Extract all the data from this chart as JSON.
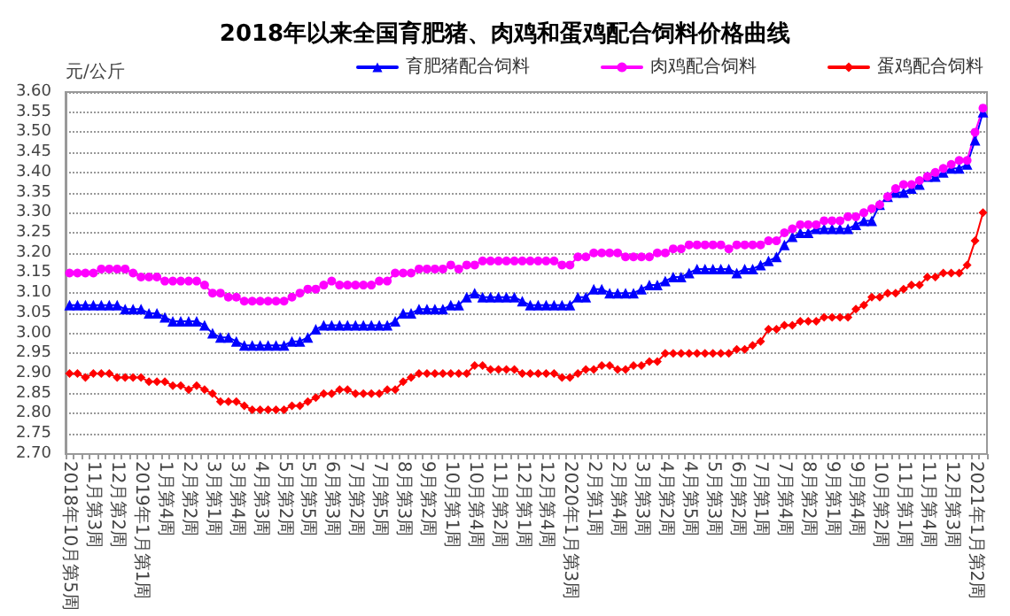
{
  "chart_data": {
    "type": "line",
    "title": "2018年以来全国育肥猪、肉鸡和蛋鸡配合饲料价格曲线",
    "ylabel": "元/公斤",
    "categories": [
      "2018年10月第5周",
      null,
      null,
      "11月第3周",
      null,
      null,
      "12月第2周",
      null,
      null,
      "2019年1月第1周",
      null,
      null,
      "1月第4周",
      null,
      null,
      "2月第2周",
      null,
      null,
      "3月第1周",
      null,
      null,
      "3月第4周",
      null,
      null,
      "4月第3周",
      null,
      null,
      "5月第2周",
      null,
      null,
      "5月第5周",
      null,
      null,
      "6月第3周",
      null,
      null,
      "7月第2周",
      null,
      null,
      "7月第5周",
      null,
      null,
      "8月第3周",
      null,
      null,
      "9月第2周",
      null,
      null,
      "10月第1周",
      null,
      null,
      "10月第4周",
      null,
      null,
      "11月第2周",
      null,
      null,
      "12月第1周",
      null,
      null,
      "12月第4周",
      null,
      null,
      "2020年1月第3周",
      null,
      null,
      "2月第1周",
      null,
      null,
      "2月第4周",
      null,
      null,
      "3月第3周",
      null,
      null,
      "4月第2周",
      null,
      null,
      "4月第5周",
      null,
      null,
      "5月第3周",
      null,
      null,
      "6月第2周",
      null,
      null,
      "7月第1周",
      null,
      null,
      "7月第4周",
      null,
      null,
      "8月第2周",
      null,
      null,
      "9月第1周",
      null,
      null,
      "9月第4周",
      null,
      null,
      "10月第2周",
      null,
      null,
      "11月第1周",
      null,
      null,
      "11月第4周",
      null,
      null,
      "12月第3周",
      null,
      null,
      "2021年1月第2周",
      null
    ],
    "series": [
      {
        "name": "育肥猪配合饲料",
        "color": "#0000ff",
        "marker": "triangle",
        "values": [
          3.07,
          3.07,
          3.07,
          3.07,
          3.07,
          3.07,
          3.07,
          3.06,
          3.06,
          3.06,
          3.05,
          3.05,
          3.04,
          3.03,
          3.03,
          3.03,
          3.03,
          3.02,
          3.0,
          2.99,
          2.99,
          2.98,
          2.97,
          2.97,
          2.97,
          2.97,
          2.97,
          2.97,
          2.98,
          2.98,
          2.99,
          3.01,
          3.02,
          3.02,
          3.02,
          3.02,
          3.02,
          3.02,
          3.02,
          3.02,
          3.02,
          3.03,
          3.05,
          3.05,
          3.06,
          3.06,
          3.06,
          3.06,
          3.07,
          3.07,
          3.09,
          3.1,
          3.09,
          3.09,
          3.09,
          3.09,
          3.09,
          3.08,
          3.07,
          3.07,
          3.07,
          3.07,
          3.07,
          3.07,
          3.09,
          3.09,
          3.11,
          3.11,
          3.1,
          3.1,
          3.1,
          3.1,
          3.11,
          3.12,
          3.12,
          3.13,
          3.14,
          3.14,
          3.15,
          3.16,
          3.16,
          3.16,
          3.16,
          3.16,
          3.15,
          3.16,
          3.16,
          3.17,
          3.18,
          3.19,
          3.22,
          3.24,
          3.25,
          3.25,
          3.26,
          3.26,
          3.26,
          3.26,
          3.26,
          3.27,
          3.28,
          3.28,
          3.32,
          3.34,
          3.35,
          3.35,
          3.36,
          3.37,
          3.39,
          3.39,
          3.4,
          3.41,
          3.41,
          3.42,
          3.48,
          3.55
        ]
      },
      {
        "name": "肉鸡配合饲料",
        "color": "#ff00ff",
        "marker": "circle",
        "values": [
          3.15,
          3.15,
          3.15,
          3.15,
          3.16,
          3.16,
          3.16,
          3.16,
          3.15,
          3.14,
          3.14,
          3.14,
          3.13,
          3.13,
          3.13,
          3.13,
          3.13,
          3.12,
          3.1,
          3.1,
          3.09,
          3.09,
          3.08,
          3.08,
          3.08,
          3.08,
          3.08,
          3.08,
          3.09,
          3.1,
          3.11,
          3.11,
          3.12,
          3.13,
          3.12,
          3.12,
          3.12,
          3.12,
          3.12,
          3.13,
          3.13,
          3.15,
          3.15,
          3.15,
          3.16,
          3.16,
          3.16,
          3.16,
          3.17,
          3.16,
          3.17,
          3.17,
          3.18,
          3.18,
          3.18,
          3.18,
          3.18,
          3.18,
          3.18,
          3.18,
          3.18,
          3.18,
          3.17,
          3.17,
          3.19,
          3.19,
          3.2,
          3.2,
          3.2,
          3.2,
          3.19,
          3.19,
          3.19,
          3.19,
          3.2,
          3.2,
          3.21,
          3.21,
          3.22,
          3.22,
          3.22,
          3.22,
          3.22,
          3.21,
          3.22,
          3.22,
          3.22,
          3.22,
          3.23,
          3.23,
          3.25,
          3.26,
          3.27,
          3.27,
          3.27,
          3.28,
          3.28,
          3.28,
          3.29,
          3.29,
          3.3,
          3.31,
          3.32,
          3.34,
          3.36,
          3.37,
          3.37,
          3.38,
          3.39,
          3.4,
          3.41,
          3.42,
          3.43,
          3.43,
          3.5,
          3.56
        ]
      },
      {
        "name": "蛋鸡配合饲料",
        "color": "#ff0000",
        "marker": "diamond",
        "values": [
          2.9,
          2.9,
          2.89,
          2.9,
          2.9,
          2.9,
          2.89,
          2.89,
          2.89,
          2.89,
          2.88,
          2.88,
          2.88,
          2.87,
          2.87,
          2.86,
          2.87,
          2.86,
          2.85,
          2.83,
          2.83,
          2.83,
          2.82,
          2.81,
          2.81,
          2.81,
          2.81,
          2.81,
          2.82,
          2.82,
          2.83,
          2.84,
          2.85,
          2.85,
          2.86,
          2.86,
          2.85,
          2.85,
          2.85,
          2.85,
          2.86,
          2.86,
          2.88,
          2.89,
          2.9,
          2.9,
          2.9,
          2.9,
          2.9,
          2.9,
          2.9,
          2.92,
          2.92,
          2.91,
          2.91,
          2.91,
          2.91,
          2.9,
          2.9,
          2.9,
          2.9,
          2.9,
          2.89,
          2.89,
          2.9,
          2.91,
          2.91,
          2.92,
          2.92,
          2.91,
          2.91,
          2.92,
          2.92,
          2.93,
          2.93,
          2.95,
          2.95,
          2.95,
          2.95,
          2.95,
          2.95,
          2.95,
          2.95,
          2.95,
          2.96,
          2.96,
          2.97,
          2.98,
          3.01,
          3.01,
          3.02,
          3.02,
          3.03,
          3.03,
          3.03,
          3.04,
          3.04,
          3.04,
          3.04,
          3.06,
          3.07,
          3.09,
          3.09,
          3.1,
          3.1,
          3.11,
          3.12,
          3.12,
          3.14,
          3.14,
          3.15,
          3.15,
          3.15,
          3.17,
          3.23,
          3.3
        ]
      }
    ],
    "ylim": [
      2.7,
      3.6
    ],
    "yticks": [
      {
        "value": 2.7,
        "label": "2.70"
      },
      {
        "value": 2.75,
        "label": "2.75"
      },
      {
        "value": 2.8,
        "label": "2.80"
      },
      {
        "value": 2.85,
        "label": "2.85"
      },
      {
        "value": 2.9,
        "label": "2.90"
      },
      {
        "value": 2.95,
        "label": "2.95"
      },
      {
        "value": 3.0,
        "label": "3.00"
      },
      {
        "value": 3.05,
        "label": "3.05"
      },
      {
        "value": 3.1,
        "label": "3.10"
      },
      {
        "value": 3.15,
        "label": "3.15"
      },
      {
        "value": 3.2,
        "label": "3.20"
      },
      {
        "value": 3.25,
        "label": "3.25"
      },
      {
        "value": 3.3,
        "label": "3.30"
      },
      {
        "value": 3.35,
        "label": "3.35"
      },
      {
        "value": 3.4,
        "label": "3.40"
      },
      {
        "value": 3.45,
        "label": "3.45"
      },
      {
        "value": 3.5,
        "label": "3.50"
      },
      {
        "value": 3.55,
        "label": "3.55"
      },
      {
        "value": 3.6,
        "label": "3.60"
      }
    ],
    "grid": "y",
    "legend": "top right",
    "line_style": "solid"
  }
}
